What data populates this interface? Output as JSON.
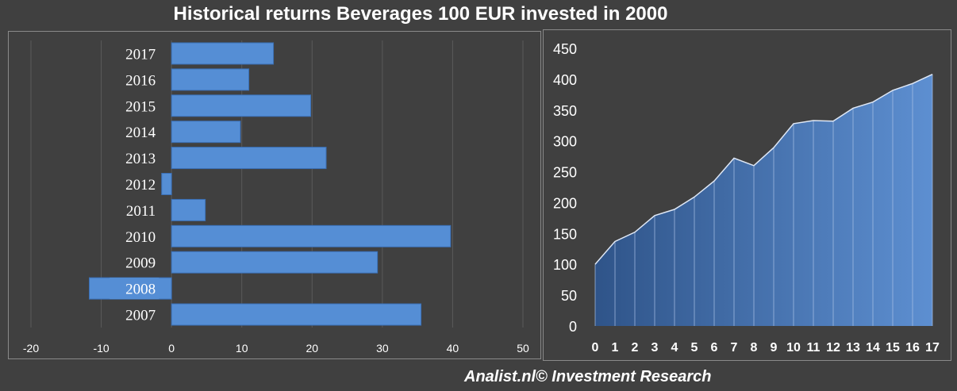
{
  "title": "Historical returns Beverages 100 EUR invested in 2000",
  "footer": "Analist.nl© Investment Research",
  "colors": {
    "background": "#404040",
    "bar": "#558ed5",
    "area_dark": "#2f5489",
    "area_light": "#5d8fd1",
    "text": "#ffffff"
  },
  "chart_data": [
    {
      "type": "bar",
      "orientation": "horizontal",
      "categories": [
        "2017",
        "2016",
        "2015",
        "2014",
        "2013",
        "2012",
        "2011",
        "2010",
        "2009",
        "2008",
        "2007"
      ],
      "values": [
        14.5,
        11,
        19.8,
        9.8,
        22,
        -1.4,
        4.8,
        39.7,
        29.3,
        -11.7,
        35.5
      ],
      "xlim": [
        -20,
        50
      ],
      "xticks": [
        "-20",
        "-10",
        "0",
        "10",
        "20",
        "30",
        "40",
        "50"
      ],
      "xtick_values": [
        -20,
        -10,
        0,
        10,
        20,
        30,
        40,
        50
      ],
      "highlight_label": "2008",
      "grid": "vertical"
    },
    {
      "type": "area",
      "x": [
        0,
        1,
        2,
        3,
        4,
        5,
        6,
        7,
        8,
        9,
        10,
        11,
        12,
        13,
        14,
        15,
        16,
        17
      ],
      "values": [
        100,
        137,
        152,
        179,
        189,
        209,
        235,
        272,
        260,
        289,
        328,
        333,
        332,
        353,
        363,
        382,
        393,
        408
      ],
      "ylim": [
        0,
        450
      ],
      "yticks": [
        "0",
        "50",
        "100",
        "150",
        "200",
        "250",
        "300",
        "350",
        "400",
        "450"
      ],
      "ytick_values": [
        0,
        50,
        100,
        150,
        200,
        250,
        300,
        350,
        400,
        450
      ],
      "xticks": [
        "0",
        "1",
        "2",
        "3",
        "4",
        "5",
        "6",
        "7",
        "8",
        "9",
        "10",
        "11",
        "12",
        "13",
        "14",
        "15",
        "16",
        "17"
      ],
      "grid": "vertical-lines-at-points"
    }
  ]
}
